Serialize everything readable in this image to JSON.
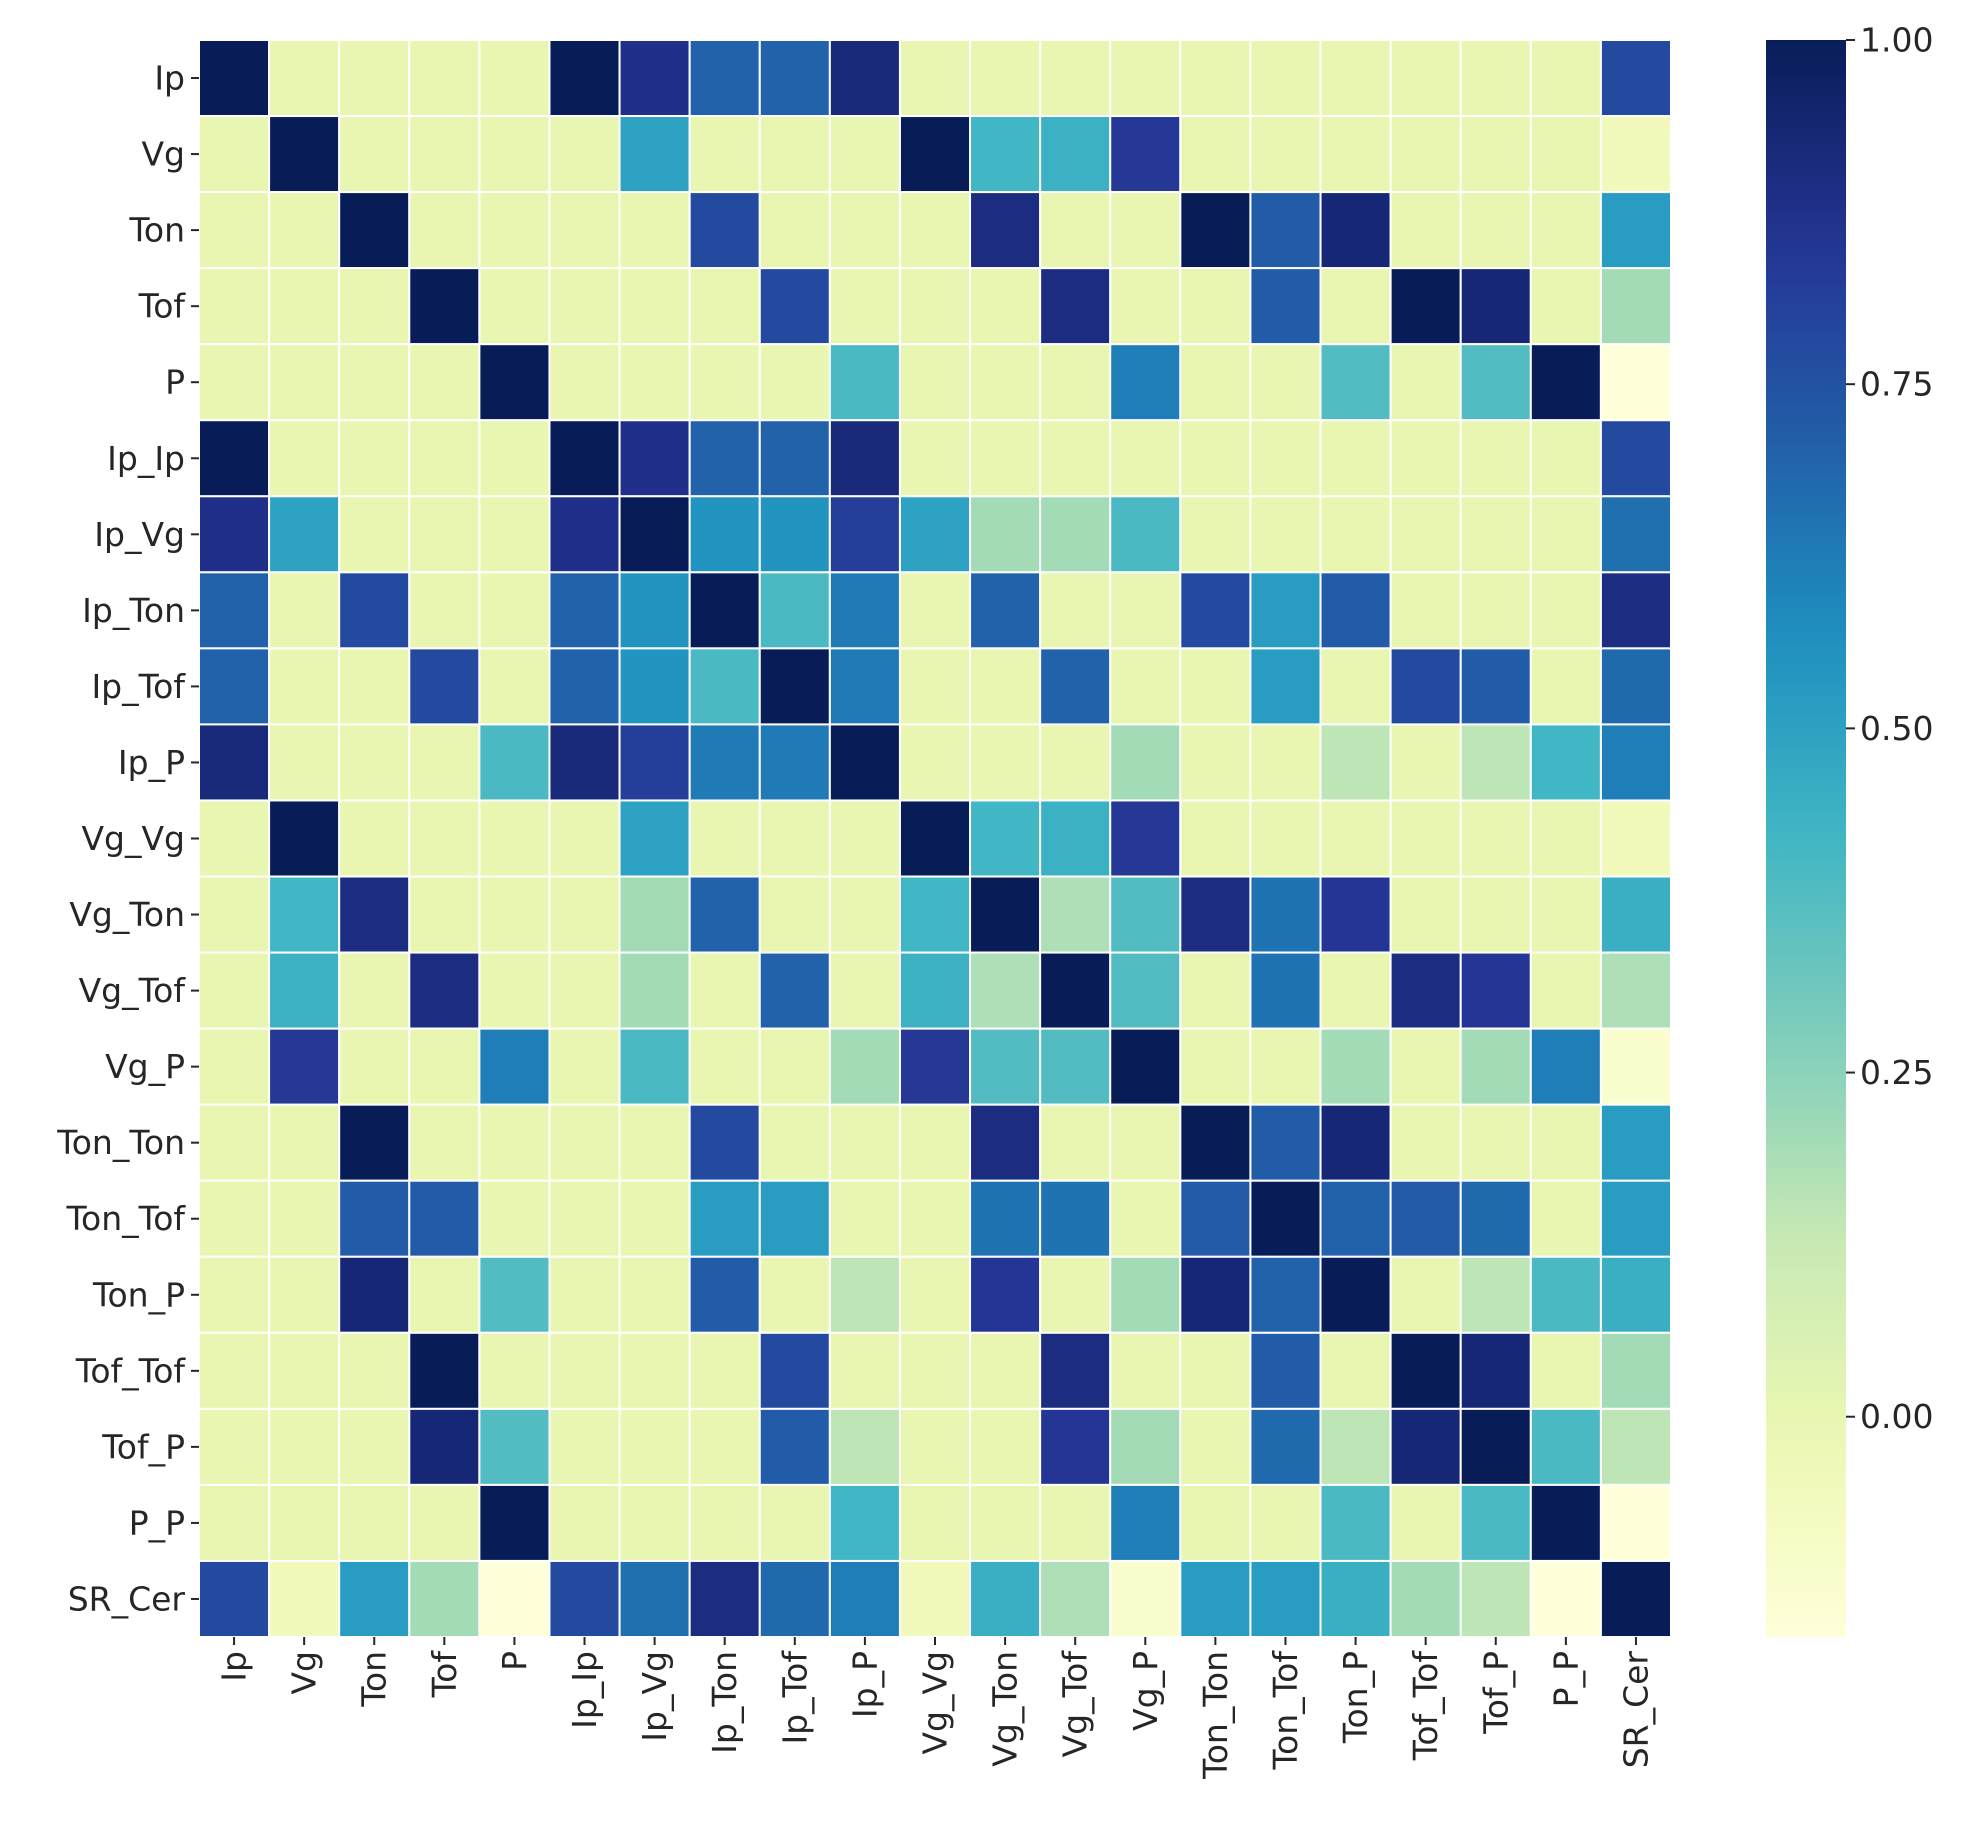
{
  "chart_data": {
    "type": "heatmap",
    "title": "",
    "xlabel": "",
    "ylabel": "",
    "labels": [
      "Ip",
      "Vg",
      "Ton",
      "Tof",
      "P",
      "Ip_Ip",
      "Ip_Vg",
      "Ip_Ton",
      "Ip_Tof",
      "Ip_P",
      "Vg_Vg",
      "Vg_Ton",
      "Vg_Tof",
      "Vg_P",
      "Ton_Ton",
      "Ton_Tof",
      "Ton_P",
      "Tof_Tof",
      "Tof_P",
      "P_P",
      "SR_Cer"
    ],
    "values": [
      [
        1.0,
        0.0,
        0.0,
        0.0,
        0.0,
        1.0,
        0.88,
        0.7,
        0.7,
        0.92,
        0.0,
        0.0,
        0.0,
        0.0,
        0.0,
        0.0,
        0.0,
        0.0,
        0.0,
        0.0,
        0.78
      ],
      [
        0.0,
        1.0,
        0.0,
        0.0,
        0.0,
        0.0,
        0.5,
        0.0,
        0.0,
        0.0,
        1.0,
        0.42,
        0.44,
        0.84,
        0.0,
        0.0,
        0.0,
        0.0,
        0.0,
        0.0,
        -0.05
      ],
      [
        0.0,
        0.0,
        1.0,
        0.0,
        0.0,
        0.0,
        0.0,
        0.78,
        0.0,
        0.0,
        0.0,
        0.9,
        0.0,
        0.0,
        1.0,
        0.72,
        0.93,
        0.0,
        0.0,
        0.0,
        0.52
      ],
      [
        0.0,
        0.0,
        0.0,
        1.0,
        0.0,
        0.0,
        0.0,
        0.0,
        0.78,
        0.0,
        0.0,
        0.0,
        0.9,
        0.0,
        0.0,
        0.72,
        0.0,
        1.0,
        0.93,
        0.0,
        0.2
      ],
      [
        0.0,
        0.0,
        0.0,
        0.0,
        1.0,
        0.0,
        0.0,
        0.0,
        0.0,
        0.4,
        0.0,
        0.0,
        0.0,
        0.62,
        0.0,
        0.0,
        0.38,
        0.0,
        0.38,
        1.0,
        -0.16
      ],
      [
        1.0,
        0.0,
        0.0,
        0.0,
        0.0,
        1.0,
        0.88,
        0.7,
        0.7,
        0.92,
        0.0,
        0.0,
        0.0,
        0.0,
        0.0,
        0.0,
        0.0,
        0.0,
        0.0,
        0.0,
        0.78
      ],
      [
        0.88,
        0.5,
        0.0,
        0.0,
        0.0,
        0.88,
        1.0,
        0.55,
        0.55,
        0.82,
        0.5,
        0.2,
        0.2,
        0.4,
        0.0,
        0.0,
        0.0,
        0.0,
        0.0,
        0.0,
        0.66
      ],
      [
        0.7,
        0.0,
        0.78,
        0.0,
        0.0,
        0.7,
        0.55,
        1.0,
        0.4,
        0.63,
        0.0,
        0.7,
        0.0,
        0.0,
        0.78,
        0.52,
        0.72,
        0.0,
        0.0,
        0.0,
        0.9
      ],
      [
        0.7,
        0.0,
        0.0,
        0.78,
        0.0,
        0.7,
        0.55,
        0.4,
        1.0,
        0.63,
        0.0,
        0.0,
        0.7,
        0.0,
        0.0,
        0.52,
        0.0,
        0.78,
        0.72,
        0.0,
        0.68
      ],
      [
        0.92,
        0.0,
        0.0,
        0.0,
        0.4,
        0.92,
        0.82,
        0.63,
        0.63,
        1.0,
        0.0,
        0.0,
        0.0,
        0.2,
        0.0,
        0.0,
        0.15,
        0.0,
        0.15,
        0.42,
        0.62
      ],
      [
        0.0,
        1.0,
        0.0,
        0.0,
        0.0,
        0.0,
        0.5,
        0.0,
        0.0,
        0.0,
        1.0,
        0.42,
        0.44,
        0.84,
        0.0,
        0.0,
        0.0,
        0.0,
        0.0,
        0.0,
        -0.05
      ],
      [
        0.0,
        0.42,
        0.9,
        0.0,
        0.0,
        0.0,
        0.2,
        0.7,
        0.0,
        0.0,
        0.42,
        1.0,
        0.18,
        0.38,
        0.9,
        0.65,
        0.85,
        0.0,
        0.0,
        0.0,
        0.45
      ],
      [
        0.0,
        0.44,
        0.0,
        0.9,
        0.0,
        0.0,
        0.2,
        0.0,
        0.7,
        0.0,
        0.44,
        0.18,
        1.0,
        0.38,
        0.0,
        0.65,
        0.0,
        0.9,
        0.85,
        0.0,
        0.18
      ],
      [
        0.0,
        0.84,
        0.0,
        0.0,
        0.62,
        0.0,
        0.4,
        0.0,
        0.0,
        0.2,
        0.84,
        0.38,
        0.38,
        1.0,
        0.0,
        0.0,
        0.2,
        0.0,
        0.2,
        0.62,
        -0.12
      ],
      [
        0.0,
        0.0,
        1.0,
        0.0,
        0.0,
        0.0,
        0.0,
        0.78,
        0.0,
        0.0,
        0.0,
        0.9,
        0.0,
        0.0,
        1.0,
        0.72,
        0.93,
        0.0,
        0.0,
        0.0,
        0.52
      ],
      [
        0.0,
        0.0,
        0.72,
        0.72,
        0.0,
        0.0,
        0.0,
        0.52,
        0.52,
        0.0,
        0.0,
        0.65,
        0.65,
        0.0,
        0.72,
        1.0,
        0.7,
        0.72,
        0.68,
        0.0,
        0.52
      ],
      [
        0.0,
        0.0,
        0.93,
        0.0,
        0.38,
        0.0,
        0.0,
        0.72,
        0.0,
        0.15,
        0.0,
        0.85,
        0.0,
        0.2,
        0.93,
        0.7,
        1.0,
        0.0,
        0.15,
        0.4,
        0.45
      ],
      [
        0.0,
        0.0,
        0.0,
        1.0,
        0.0,
        0.0,
        0.0,
        0.0,
        0.78,
        0.0,
        0.0,
        0.0,
        0.9,
        0.0,
        0.0,
        0.72,
        0.0,
        1.0,
        0.93,
        0.0,
        0.2
      ],
      [
        0.0,
        0.0,
        0.0,
        0.93,
        0.38,
        0.0,
        0.0,
        0.0,
        0.72,
        0.15,
        0.0,
        0.0,
        0.85,
        0.2,
        0.0,
        0.68,
        0.15,
        0.93,
        1.0,
        0.4,
        0.15
      ],
      [
        0.0,
        0.0,
        0.0,
        0.0,
        1.0,
        0.0,
        0.0,
        0.0,
        0.0,
        0.42,
        0.0,
        0.0,
        0.0,
        0.62,
        0.0,
        0.0,
        0.4,
        0.0,
        0.4,
        1.0,
        -0.16
      ],
      [
        0.78,
        -0.05,
        0.52,
        0.2,
        -0.16,
        0.78,
        0.66,
        0.9,
        0.68,
        0.62,
        -0.05,
        0.45,
        0.18,
        -0.12,
        0.52,
        0.52,
        0.45,
        0.2,
        0.15,
        -0.16,
        1.0
      ]
    ],
    "colormap": "YlGnBu",
    "colorbar": {
      "vmin": -0.16,
      "vmax": 1.0,
      "ticks": [
        0.0,
        0.25,
        0.5,
        0.75,
        1.0
      ],
      "tick_labels": [
        "0.00",
        "0.25",
        "0.50",
        "0.75",
        "1.00"
      ]
    },
    "grid": true,
    "legend": "colorbar-right"
  }
}
